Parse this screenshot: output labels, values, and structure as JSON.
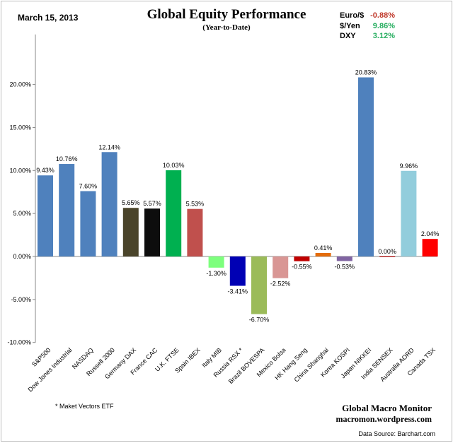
{
  "header": {
    "date": "March 15, 2013",
    "title": "Global Equity Performance",
    "subtitle": "(Year-to-Date)",
    "fx": [
      {
        "label": "Euro/$",
        "value": "-0.88%",
        "color": "#c0392b"
      },
      {
        "label": "$/Yen",
        "value": "9.86%",
        "color": "#27ae60"
      },
      {
        "label": "DXY",
        "value": "3.12%",
        "color": "#27ae60"
      }
    ]
  },
  "footer": {
    "note": "* Maket Vectors ETF",
    "brand": "Global Macro Monitor",
    "site": "macromon.wordpress.com",
    "source": "Data Source:   Barchart.com"
  },
  "chart_data": {
    "type": "bar",
    "title": "Global Equity Performance",
    "subtitle": "(Year-to-Date)",
    "ylim": [
      -10,
      25
    ],
    "yticks": [
      -10,
      -5,
      0,
      5,
      10,
      15,
      20
    ],
    "ytick_labels": [
      "-10.00%",
      "-5.00%",
      "0.00%",
      "5.00%",
      "10.00%",
      "15.00%",
      "20.00%"
    ],
    "grid": false,
    "categories": [
      "S&P500",
      "Dow Jones Industrial",
      "NASDAQ",
      "Russell 2000",
      "Germany DAX",
      "France CAC",
      "U.K. FTSE",
      "Spain IBEX",
      "Italy  MIB",
      "Russia RSX *",
      "Brazil BOVESPA",
      "Mexico Bolsa",
      "HK  Hang Seng",
      "China Shanghai",
      "Korea KOSPI",
      "Japan NIKKEI",
      "India SENSEX",
      "Australia AORD",
      "Canada TSX"
    ],
    "values": [
      9.43,
      10.76,
      7.6,
      12.14,
      5.65,
      5.57,
      10.03,
      5.53,
      -1.3,
      -3.41,
      -6.7,
      -2.52,
      -0.55,
      0.41,
      -0.53,
      20.83,
      0.0,
      9.96,
      2.04
    ],
    "data_labels": [
      "9.43%",
      "10.76%",
      "7.60%",
      "12.14%",
      "5.65%",
      "5.57%",
      "10.03%",
      "5.53%",
      "-1.30%",
      "-3.41%",
      "-6.70%",
      "-2.52%",
      "-0.55%",
      "0.41%",
      "-0.53%",
      "20.83%",
      "0.00%",
      "9.96%",
      "2.04%"
    ],
    "colors": [
      "#4f81bd",
      "#4f81bd",
      "#4f81bd",
      "#4f81bd",
      "#4a442a",
      "#0d0d0d",
      "#00b050",
      "#c0504d",
      "#7dff7d",
      "#0000b4",
      "#9bbb59",
      "#d99694",
      "#c00000",
      "#e46c0a",
      "#8064a2",
      "#4f81bd",
      "#c00000",
      "#92cddc",
      "#ff0000"
    ]
  }
}
